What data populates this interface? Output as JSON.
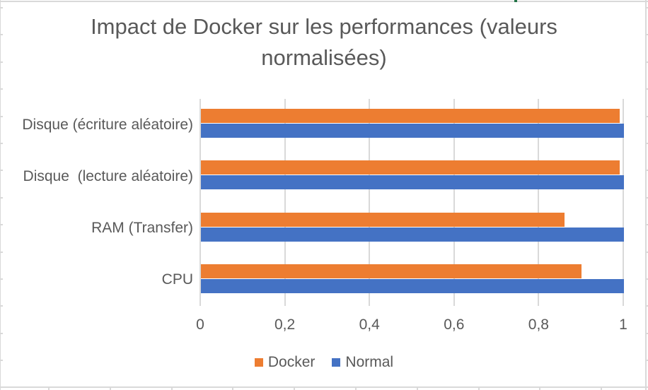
{
  "chart": {
    "title_lines": [
      "Impact de Docker sur les performances (valeurs",
      "normalisées)"
    ]
  },
  "chart_data": {
    "type": "bar",
    "orientation": "horizontal",
    "title": "Impact de Docker sur les performances (valeurs normalisées)",
    "categories": [
      "Disque (écriture aléatoire)",
      "Disque  (lecture aléatoire)",
      "RAM (Transfer)",
      "CPU"
    ],
    "categories_order": "top-to-bottom",
    "series": [
      {
        "name": "Docker",
        "color": "#ED7D31",
        "values": [
          0.99,
          0.99,
          0.86,
          0.9
        ]
      },
      {
        "name": "Normal",
        "color": "#4472C4",
        "values": [
          1.0,
          1.0,
          1.0,
          1.0
        ]
      }
    ],
    "x_ticks": [
      "0",
      "0,2",
      "0,4",
      "0,6",
      "0,8",
      "1"
    ],
    "xlim": [
      0,
      1
    ],
    "grid": true,
    "legend_position": "bottom",
    "xlabel": "",
    "ylabel": ""
  },
  "colors": {
    "text": "#595959",
    "gridline": "#D9D9D9",
    "sheet_gridline": "#D9D9D9",
    "cell_marker_green": "#217346",
    "background": "#FFFFFF"
  }
}
